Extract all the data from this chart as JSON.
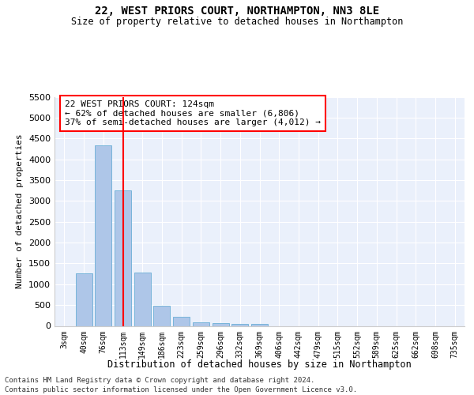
{
  "title": "22, WEST PRIORS COURT, NORTHAMPTON, NN3 8LE",
  "subtitle": "Size of property relative to detached houses in Northampton",
  "xlabel": "Distribution of detached houses by size in Northampton",
  "ylabel": "Number of detached properties",
  "bar_labels": [
    "3sqm",
    "40sqm",
    "76sqm",
    "113sqm",
    "149sqm",
    "186sqm",
    "223sqm",
    "259sqm",
    "296sqm",
    "332sqm",
    "369sqm",
    "406sqm",
    "442sqm",
    "479sqm",
    "515sqm",
    "552sqm",
    "589sqm",
    "625sqm",
    "662sqm",
    "698sqm",
    "735sqm"
  ],
  "bar_values": [
    0,
    1260,
    4330,
    3260,
    1280,
    490,
    220,
    90,
    60,
    50,
    50,
    0,
    0,
    0,
    0,
    0,
    0,
    0,
    0,
    0,
    0
  ],
  "bar_color": "#aec6e8",
  "bar_edgecolor": "#6aaed6",
  "vline_x": 3,
  "vline_color": "red",
  "annotation_title": "22 WEST PRIORS COURT: 124sqm",
  "annotation_line1": "← 62% of detached houses are smaller (6,806)",
  "annotation_line2": "37% of semi-detached houses are larger (4,012) →",
  "annotation_box_color": "white",
  "annotation_box_edgecolor": "red",
  "ylim": [
    0,
    5500
  ],
  "yticks": [
    0,
    500,
    1000,
    1500,
    2000,
    2500,
    3000,
    3500,
    4000,
    4500,
    5000,
    5500
  ],
  "bg_color": "#eaf0fb",
  "footer_line1": "Contains HM Land Registry data © Crown copyright and database right 2024.",
  "footer_line2": "Contains public sector information licensed under the Open Government Licence v3.0."
}
